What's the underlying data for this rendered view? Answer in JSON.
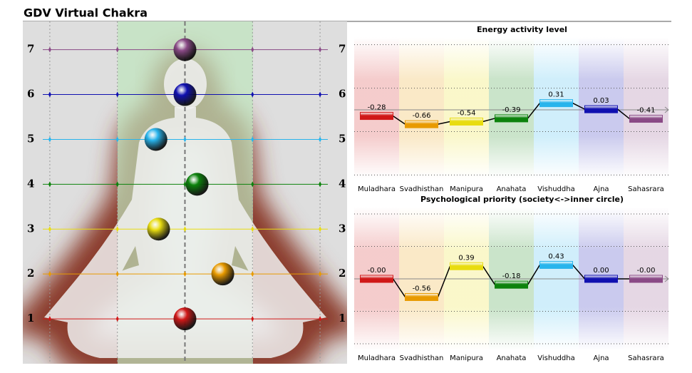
{
  "header": {
    "title": "GDV Virtual Chakra"
  },
  "body_map": {
    "yticks": [
      1,
      2,
      3,
      4,
      5,
      6,
      7
    ],
    "ylim": [
      0,
      7.63
    ],
    "xticks": [
      2,
      1,
      0,
      -1,
      -2
    ],
    "xlim": [
      2.4,
      -2.4
    ]
  },
  "chart_data": [
    {
      "type": "bar",
      "title": "Energy activity level",
      "categories": [
        "Muladhara",
        "Svadhisthan",
        "Manipura",
        "Anahata",
        "Vishuddha",
        "Ajna",
        "Sahasrara"
      ],
      "values": [
        -0.28,
        -0.66,
        -0.54,
        -0.39,
        0.31,
        0.03,
        -0.41
      ],
      "colors": [
        "#d01818",
        "#e89a00",
        "#e8dc10",
        "#0c820c",
        "#28b4ec",
        "#1010b0",
        "#8a4a86"
      ],
      "ylim": [
        -3.15,
        3.35
      ],
      "yticks": [
        -3,
        -1,
        1,
        3
      ],
      "grid": true
    },
    {
      "type": "bar",
      "title": "Psychological priority (society<->inner circle)",
      "categories": [
        "Muladhara",
        "Svadhisthan",
        "Manipura",
        "Anahata",
        "Vishuddha",
        "Ajna",
        "Sahasrara"
      ],
      "values": [
        0,
        -0.56,
        0.39,
        -0.18,
        0.43,
        0,
        0
      ],
      "value_labels": [
        "-0.00",
        "-0.56",
        "0.39",
        "-0.18",
        "0.43",
        "0.00",
        "-0.00"
      ],
      "colors": [
        "#d01818",
        "#e89a00",
        "#e8dc10",
        "#0c820c",
        "#28b4ec",
        "#1010b0",
        "#8a4a86"
      ],
      "ylim": [
        -2.22,
        2.22
      ],
      "yticks": [
        -2,
        -1,
        1,
        2
      ],
      "grid": true
    }
  ]
}
